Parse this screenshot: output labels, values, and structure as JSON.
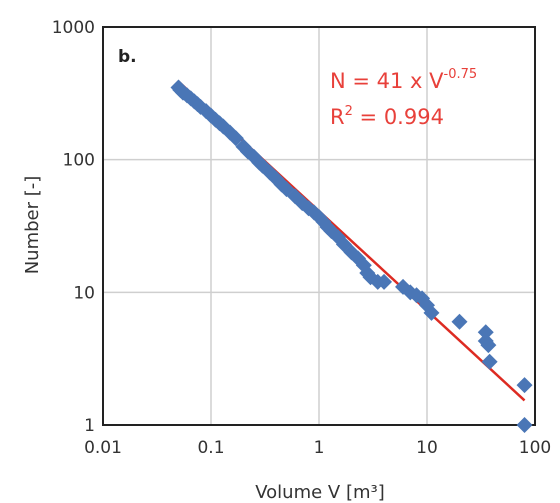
{
  "chart_data": {
    "type": "scatter",
    "title": "",
    "panel_label": "b.",
    "xlabel": "Volume V [m³]",
    "ylabel": "Number [-]",
    "x_scale": "log",
    "y_scale": "log",
    "xlim": [
      0.01,
      100
    ],
    "ylim": [
      1,
      1000
    ],
    "grid": true,
    "x_tick_labels": [
      "0.01",
      "0.1",
      "1",
      "10",
      "100"
    ],
    "y_tick_labels": [
      "1",
      "10",
      "100",
      "1000"
    ],
    "series": [
      {
        "points": [
          {
            "x": 0.05,
            "y": 350
          },
          {
            "x": 0.052,
            "y": 335
          },
          {
            "x": 0.055,
            "y": 320
          },
          {
            "x": 0.06,
            "y": 305
          },
          {
            "x": 0.065,
            "y": 290
          },
          {
            "x": 0.07,
            "y": 275
          },
          {
            "x": 0.075,
            "y": 262
          },
          {
            "x": 0.08,
            "y": 250
          },
          {
            "x": 0.09,
            "y": 232
          },
          {
            "x": 0.1,
            "y": 215
          },
          {
            "x": 0.11,
            "y": 200
          },
          {
            "x": 0.12,
            "y": 188
          },
          {
            "x": 0.13,
            "y": 178
          },
          {
            "x": 0.15,
            "y": 160
          },
          {
            "x": 0.17,
            "y": 145
          },
          {
            "x": 0.2,
            "y": 125
          },
          {
            "x": 0.22,
            "y": 115
          },
          {
            "x": 0.25,
            "y": 105
          },
          {
            "x": 0.28,
            "y": 95
          },
          {
            "x": 0.3,
            "y": 90
          },
          {
            "x": 0.35,
            "y": 80
          },
          {
            "x": 0.4,
            "y": 72
          },
          {
            "x": 0.45,
            "y": 65
          },
          {
            "x": 0.5,
            "y": 60
          },
          {
            "x": 0.6,
            "y": 53
          },
          {
            "x": 0.7,
            "y": 47
          },
          {
            "x": 0.8,
            "y": 43
          },
          {
            "x": 0.9,
            "y": 40
          },
          {
            "x": 1.0,
            "y": 37
          },
          {
            "x": 1.1,
            "y": 34
          },
          {
            "x": 1.2,
            "y": 31
          },
          {
            "x": 1.3,
            "y": 29
          },
          {
            "x": 1.5,
            "y": 26
          },
          {
            "x": 1.7,
            "y": 23
          },
          {
            "x": 2.0,
            "y": 20
          },
          {
            "x": 2.3,
            "y": 18
          },
          {
            "x": 2.6,
            "y": 16
          },
          {
            "x": 2.8,
            "y": 14
          },
          {
            "x": 3.0,
            "y": 13
          },
          {
            "x": 3.5,
            "y": 12
          },
          {
            "x": 4.0,
            "y": 12
          },
          {
            "x": 6.0,
            "y": 11
          },
          {
            "x": 7.0,
            "y": 10
          },
          {
            "x": 8.0,
            "y": 9.5
          },
          {
            "x": 9.0,
            "y": 9
          },
          {
            "x": 10.0,
            "y": 8
          },
          {
            "x": 11.0,
            "y": 7
          },
          {
            "x": 20.0,
            "y": 6
          },
          {
            "x": 35.0,
            "y": 5
          },
          {
            "x": 35.0,
            "y": 4.3
          },
          {
            "x": 37.0,
            "y": 4
          },
          {
            "x": 38.0,
            "y": 3
          },
          {
            "x": 80.0,
            "y": 2
          },
          {
            "x": 80.0,
            "y": 1
          }
        ]
      }
    ],
    "fit_line": {
      "coef": 41,
      "exponent": -0.75,
      "x_range": [
        0.05,
        80
      ]
    },
    "annotations": {
      "equation_main": "N = 41 x V",
      "equation_exponent": "-0.75",
      "r2_prefix": "R",
      "r2_superscript": "2",
      "r2_value": " = 0.994"
    },
    "colors": {
      "marker": "#4a76b6",
      "fit_line": "#dd2b22",
      "annotation": "#e8403a",
      "grid": "#cfcfcf",
      "frame": "#222222"
    }
  }
}
